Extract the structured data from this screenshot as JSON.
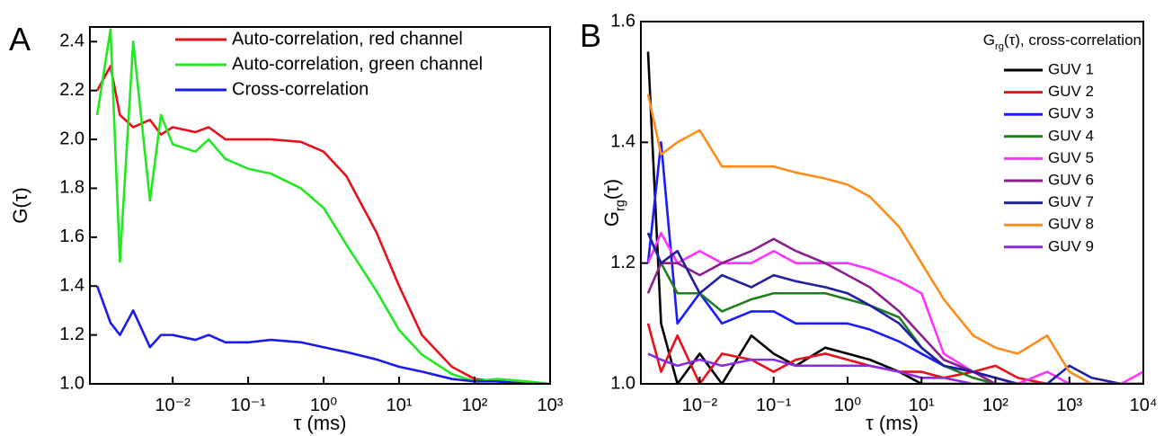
{
  "chart_data": [
    {
      "type": "line",
      "panel_label": "A",
      "x_label": "τ (ms)",
      "y_label": "G(τ)",
      "log_x": true,
      "xlim": [
        0.0008,
        1000
      ],
      "ylim": [
        1.0,
        2.46
      ],
      "xticks": [
        {
          "value": 0.01,
          "label": "10⁻²"
        },
        {
          "value": 0.1,
          "label": "10⁻¹"
        },
        {
          "value": 1,
          "label": "10⁰"
        },
        {
          "value": 10,
          "label": "10¹"
        },
        {
          "value": 100,
          "label": "10²"
        },
        {
          "value": 1000,
          "label": "10³"
        }
      ],
      "yticks": [
        {
          "value": 1,
          "label": "1.0"
        },
        1.2,
        1.4,
        1.6,
        1.8,
        {
          "value": 2,
          "label": "2.0"
        },
        2.2,
        2.4
      ],
      "x": [
        0.001,
        0.0015,
        0.002,
        0.003,
        0.005,
        0.007,
        0.01,
        0.02,
        0.03,
        0.05,
        0.1,
        0.2,
        0.5,
        1,
        2,
        5,
        10,
        20,
        50,
        100,
        200,
        500,
        1000
      ],
      "series": [
        {
          "name": "Auto-correlation, red channel",
          "color": "#e8101a",
          "values": [
            2.2,
            2.3,
            2.1,
            2.05,
            2.08,
            2.02,
            2.05,
            2.03,
            2.05,
            2.0,
            2.0,
            2.0,
            1.99,
            1.95,
            1.85,
            1.62,
            1.4,
            1.2,
            1.07,
            1.02,
            1.01,
            1.0,
            1.0
          ]
        },
        {
          "name": "Auto-correlation, green channel",
          "color": "#22e822",
          "values": [
            2.1,
            2.45,
            1.5,
            2.4,
            1.75,
            2.1,
            1.98,
            1.95,
            2.0,
            1.92,
            1.88,
            1.86,
            1.8,
            1.72,
            1.57,
            1.38,
            1.22,
            1.12,
            1.04,
            1.01,
            1.02,
            1.01,
            1.0
          ]
        },
        {
          "name": "Cross-correlation",
          "color": "#1a1aee",
          "values": [
            1.4,
            1.25,
            1.2,
            1.3,
            1.15,
            1.2,
            1.2,
            1.18,
            1.2,
            1.17,
            1.17,
            1.18,
            1.17,
            1.15,
            1.13,
            1.1,
            1.07,
            1.05,
            1.02,
            1.01,
            1.01,
            1.0,
            1.0
          ]
        }
      ]
    },
    {
      "type": "line",
      "panel_label": "B",
      "x_label": "τ (ms)",
      "y_label": {
        "base": "G",
        "subscript": "rg",
        "rest": "(τ)"
      },
      "legend_title": {
        "base": "G",
        "subscript": "rg",
        "rest": "(τ), cross-correlation"
      },
      "log_x": true,
      "xlim": [
        0.0016,
        10000
      ],
      "ylim": [
        1.0,
        1.6
      ],
      "xticks": [
        {
          "value": 0.01,
          "label": "10⁻²"
        },
        {
          "value": 0.1,
          "label": "10⁻¹"
        },
        {
          "value": 1,
          "label": "10⁰"
        },
        {
          "value": 10,
          "label": "10¹"
        },
        {
          "value": 100,
          "label": "10²"
        },
        {
          "value": 1000,
          "label": "10³"
        },
        {
          "value": 10000,
          "label": "10⁴"
        }
      ],
      "yticks": [
        {
          "value": 1,
          "label": "1.0"
        },
        1.2,
        1.4,
        1.6
      ],
      "x": [
        0.002,
        0.003,
        0.005,
        0.01,
        0.02,
        0.05,
        0.1,
        0.2,
        0.5,
        1,
        2,
        5,
        10,
        20,
        50,
        100,
        200,
        500,
        1000,
        2000,
        5000,
        10000
      ],
      "series": [
        {
          "name": "GUV 1",
          "color": "#000000",
          "values": [
            1.55,
            1.1,
            1.0,
            1.05,
            1.0,
            1.08,
            1.05,
            1.03,
            1.06,
            1.05,
            1.04,
            1.02,
            1.0,
            1.0,
            1.0,
            1.0,
            1.0,
            1.0,
            1.0,
            1.0,
            1.0,
            1.0
          ]
        },
        {
          "name": "GUV 2",
          "color": "#e8101a",
          "values": [
            1.1,
            1.02,
            1.08,
            1.0,
            1.05,
            1.04,
            1.02,
            1.04,
            1.05,
            1.04,
            1.03,
            1.02,
            1.02,
            1.01,
            1.02,
            1.03,
            1.01,
            1.0,
            1.0,
            1.0,
            1.0,
            1.0
          ]
        },
        {
          "name": "GUV 3",
          "color": "#1a1aff",
          "values": [
            1.2,
            1.4,
            1.1,
            1.15,
            1.1,
            1.12,
            1.12,
            1.1,
            1.1,
            1.1,
            1.09,
            1.07,
            1.05,
            1.03,
            1.02,
            1.01,
            1.0,
            1.0,
            1.0,
            1.0,
            1.0,
            1.0
          ]
        },
        {
          "name": "GUV 4",
          "color": "#1f7f1f",
          "values": [
            1.25,
            1.2,
            1.15,
            1.15,
            1.12,
            1.14,
            1.15,
            1.15,
            1.15,
            1.14,
            1.13,
            1.11,
            1.06,
            1.03,
            1.01,
            1.0,
            1.0,
            1.0,
            1.0,
            1.0,
            1.0,
            1.0
          ]
        },
        {
          "name": "GUV 5",
          "color": "#ff33ff",
          "values": [
            1.2,
            1.25,
            1.2,
            1.22,
            1.2,
            1.2,
            1.22,
            1.2,
            1.2,
            1.2,
            1.19,
            1.17,
            1.15,
            1.05,
            1.02,
            1.01,
            1.0,
            1.02,
            1.0,
            1.0,
            1.0,
            1.02
          ]
        },
        {
          "name": "GUV 6",
          "color": "#8b1f8b",
          "values": [
            1.15,
            1.2,
            1.2,
            1.18,
            1.2,
            1.22,
            1.24,
            1.22,
            1.2,
            1.18,
            1.16,
            1.12,
            1.08,
            1.04,
            1.02,
            1.0,
            1.0,
            1.0,
            1.0,
            1.0,
            1.0,
            1.0
          ]
        },
        {
          "name": "GUV 7",
          "color": "#1f1f9f",
          "values": [
            1.25,
            1.2,
            1.22,
            1.15,
            1.18,
            1.16,
            1.18,
            1.17,
            1.16,
            1.15,
            1.13,
            1.1,
            1.06,
            1.03,
            1.02,
            1.01,
            1.0,
            1.0,
            1.03,
            1.01,
            1.0,
            1.0
          ]
        },
        {
          "name": "GUV 8",
          "color": "#ff8c1a",
          "values": [
            1.48,
            1.38,
            1.4,
            1.42,
            1.36,
            1.36,
            1.36,
            1.35,
            1.34,
            1.33,
            1.31,
            1.26,
            1.2,
            1.14,
            1.08,
            1.06,
            1.05,
            1.08,
            1.02,
            1.0,
            1.0,
            1.0
          ]
        },
        {
          "name": "GUV 9",
          "color": "#8a2be2",
          "values": [
            1.05,
            1.04,
            1.03,
            1.04,
            1.03,
            1.04,
            1.04,
            1.03,
            1.03,
            1.03,
            1.03,
            1.02,
            1.01,
            1.01,
            1.0,
            1.0,
            1.0,
            1.0,
            1.0,
            1.0,
            1.0,
            1.0
          ]
        }
      ]
    }
  ]
}
